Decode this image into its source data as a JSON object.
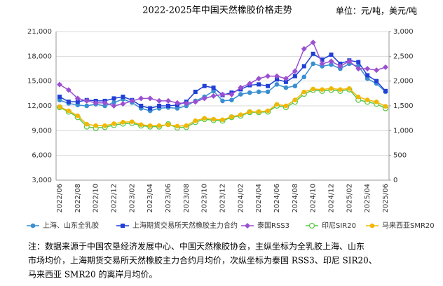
{
  "chart_data": {
    "type": "line",
    "title": "2022-2025年中国天然橡胶价格走势",
    "unit": "单位：元/吨，美元/吨",
    "categories": [
      "2022/06",
      null,
      "2022/08",
      null,
      "2022/10",
      null,
      "2022/12",
      null,
      "2023/02",
      null,
      "2023/04",
      null,
      "2023/06",
      null,
      "2023/08",
      null,
      "2023/10",
      null,
      "2023/12",
      null,
      "2024/02",
      null,
      "2024/04",
      null,
      "2024/06",
      null,
      "2024/08",
      null,
      "2024/10",
      null,
      "2024/12",
      null,
      "2025/02",
      null,
      "2025/04",
      null,
      "2025/06"
    ],
    "series": [
      {
        "name": "上海、山东全乳胶",
        "color": "#3a8fd0",
        "marker": "circle",
        "values": [
          12700,
          12300,
          12100,
          12000,
          12200,
          12000,
          12400,
          12800,
          12400,
          11700,
          11400,
          11700,
          11800,
          11700,
          12000,
          12600,
          13100,
          13800,
          12600,
          12700,
          13400,
          13600,
          13700,
          13700,
          14600,
          14200,
          14400,
          15500,
          17100,
          16800,
          17000,
          16500,
          17100,
          16800,
          15300,
          14700,
          13700
        ]
      },
      {
        "name": "上海期货交易所天然橡胶主力合约",
        "color": "#1f3fd6",
        "marker": "square",
        "values": [
          13100,
          12500,
          12500,
          12700,
          12600,
          12600,
          12900,
          13100,
          12700,
          12000,
          11700,
          12000,
          12000,
          12100,
          12500,
          13700,
          14400,
          14200,
          13300,
          13600,
          14000,
          14500,
          14600,
          14400,
          15200,
          14900,
          15600,
          16800,
          18300,
          17600,
          18200,
          17100,
          17500,
          17300,
          15700,
          15000,
          13800
        ]
      },
      {
        "name": "泰国RSS3",
        "color": "#9b4fd1",
        "marker": "diamond",
        "axis": "y2",
        "values": [
          1930,
          1820,
          1650,
          1600,
          1560,
          1560,
          1500,
          1540,
          1600,
          1650,
          1650,
          1600,
          1600,
          1560,
          1550,
          1580,
          1650,
          1700,
          1730,
          1730,
          1870,
          1950,
          2050,
          2100,
          2100,
          2050,
          2200,
          2650,
          2780,
          2350,
          2400,
          2300,
          2400,
          2250,
          2250,
          2220,
          2280
        ]
      },
      {
        "name": "印尼SIR20",
        "color": "#5cc84a",
        "marker": "open-circle",
        "axis": "y2",
        "values": [
          1470,
          1380,
          1270,
          1080,
          1050,
          1070,
          1110,
          1140,
          1150,
          1100,
          1080,
          1080,
          1130,
          1060,
          1070,
          1170,
          1230,
          1210,
          1200,
          1270,
          1300,
          1370,
          1370,
          1380,
          1500,
          1470,
          1580,
          1740,
          1820,
          1800,
          1820,
          1800,
          1830,
          1620,
          1580,
          1540,
          1450
        ]
      },
      {
        "name": "马来西亚SMR20",
        "color": "#f2b705",
        "marker": "circle",
        "axis": "y2",
        "values": [
          1480,
          1400,
          1300,
          1130,
          1100,
          1100,
          1140,
          1170,
          1180,
          1120,
          1100,
          1100,
          1120,
          1090,
          1100,
          1200,
          1250,
          1230,
          1220,
          1280,
          1320,
          1380,
          1380,
          1400,
          1530,
          1500,
          1620,
          1780,
          1840,
          1830,
          1850,
          1830,
          1850,
          1680,
          1620,
          1580,
          1490
        ]
      }
    ],
    "ylim": [
      3000,
      21000
    ],
    "yticks": [
      {
        "value": 3000,
        "label": "3,000"
      },
      {
        "value": 6000,
        "label": "6,000"
      },
      {
        "value": 9000,
        "label": "9,000"
      },
      {
        "value": 12000,
        "label": "12,000"
      },
      {
        "value": 15000,
        "label": "15,000"
      },
      {
        "value": 18000,
        "label": "18,000"
      },
      {
        "value": 21000,
        "label": "21,000"
      }
    ],
    "y2lim": [
      0,
      3000
    ],
    "y2ticks": [
      0,
      500,
      {
        "value": 1000,
        "label": "1,000"
      },
      {
        "value": 1500,
        "label": "1,500"
      },
      {
        "value": 2000,
        "label": "2,000"
      },
      {
        "value": 2500,
        "label": "2,500"
      },
      {
        "value": 3000,
        "label": "3,000"
      }
    ],
    "grid": true,
    "legend": "bottom",
    "note": [
      "注：数据来源于中国农垦经济发展中心、中国天然橡胶协会，主纵坐标为全乳胶上海、山东",
      "市场均价，上海期货交易所天然橡胶主力合约月均价，次纵坐标为泰国 RSS3、印尼 SIR20、",
      "马来西亚 SMR20 的离岸月均价。"
    ]
  }
}
